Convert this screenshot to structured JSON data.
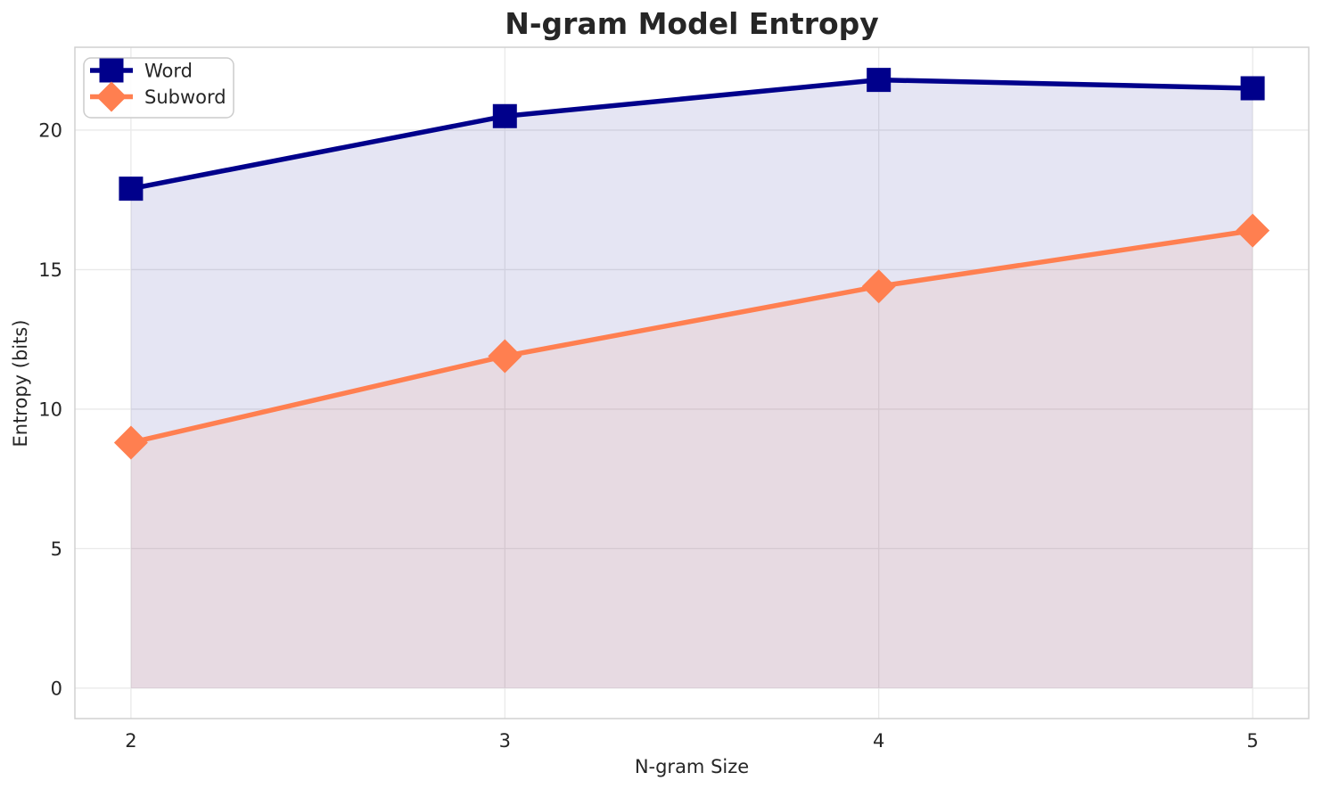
{
  "chart_data": {
    "type": "line",
    "title": "N-gram Model Entropy",
    "xlabel": "N-gram Size",
    "ylabel": "Entropy (bits)",
    "x": [
      2,
      3,
      4,
      5
    ],
    "series": [
      {
        "name": "Word",
        "values": [
          17.9,
          20.5,
          21.8,
          21.5
        ],
        "color": "#00008B",
        "marker": "square",
        "fill_to_zero": true,
        "fill_opacity": 0.1
      },
      {
        "name": "Subword",
        "values": [
          8.8,
          11.9,
          14.4,
          16.4
        ],
        "color": "#FF7F50",
        "marker": "diamond",
        "fill_to_zero": true,
        "fill_opacity": 0.1
      }
    ],
    "xticks": [
      2,
      3,
      4,
      5
    ],
    "yticks": [
      0,
      5,
      10,
      15,
      20
    ],
    "xlim": [
      1.85,
      5.15
    ],
    "ylim": [
      -1.09,
      22.97
    ],
    "grid": true,
    "legend_position": "upper left",
    "colors": {
      "text": "#262626",
      "grid": "#e9e9e9",
      "spine": "#d0d0d0",
      "background": "#ffffff",
      "legend_border": "#cccccc",
      "legend_fill": "rgba(255,255,255,0.85)"
    }
  }
}
